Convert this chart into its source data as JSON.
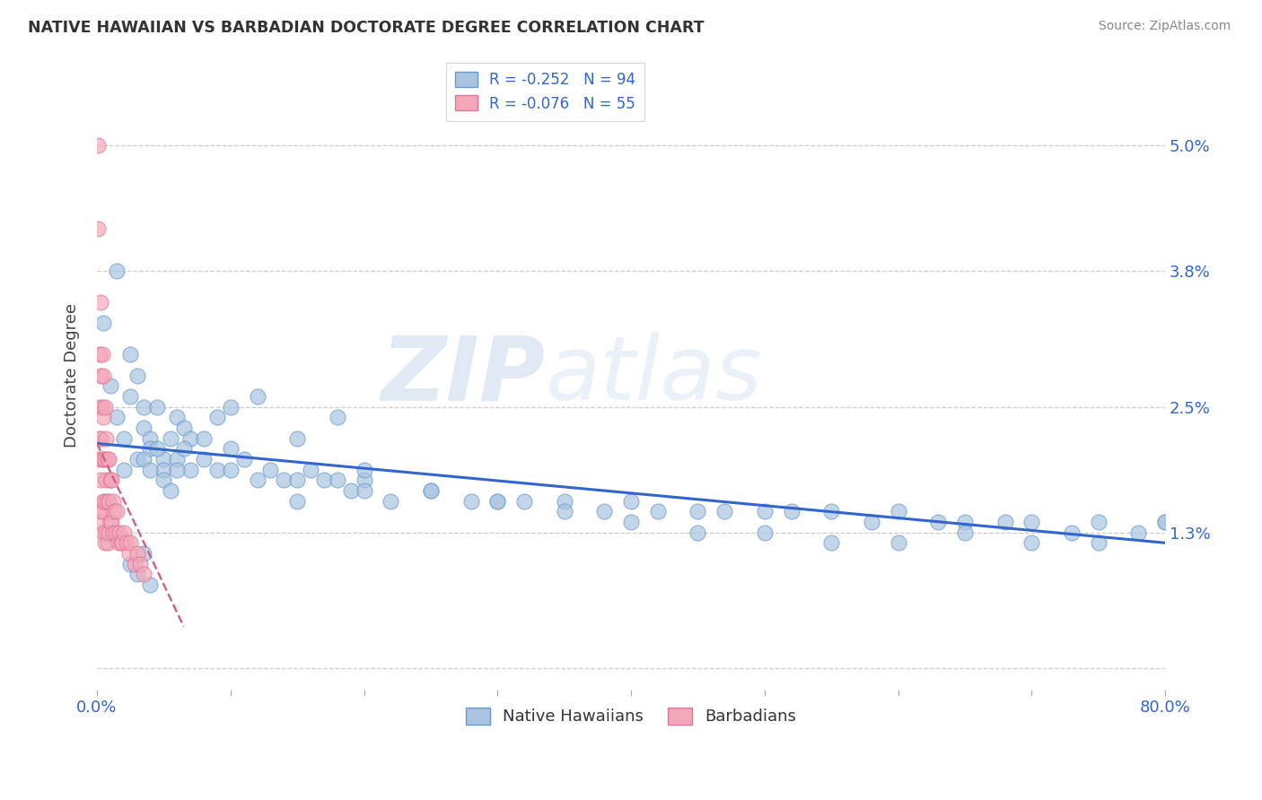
{
  "title": "NATIVE HAWAIIAN VS BARBADIAN DOCTORATE DEGREE CORRELATION CHART",
  "source": "Source: ZipAtlas.com",
  "ylabel": "Doctorate Degree",
  "xlim": [
    0.0,
    0.8
  ],
  "ylim": [
    -0.002,
    0.058
  ],
  "xtick_vals": [
    0.0,
    0.1,
    0.2,
    0.3,
    0.4,
    0.5,
    0.6,
    0.7,
    0.8
  ],
  "xtick_labels": [
    "0.0%",
    "",
    "",
    "",
    "",
    "",
    "",
    "",
    "80.0%"
  ],
  "ytick_vals": [
    0.0,
    0.013,
    0.025,
    0.038,
    0.05
  ],
  "ytick_labels": [
    "",
    "1.3%",
    "2.5%",
    "3.8%",
    "5.0%"
  ],
  "grid_color": "#cccccc",
  "background_color": "#ffffff",
  "series1_color": "#aac4e0",
  "series2_color": "#f4a7b9",
  "series1_edge": "#6699cc",
  "series2_edge": "#dd7799",
  "trendline1_color": "#3366cc",
  "trendline2_color": "#cc6688",
  "legend_series1_label": "R = -0.252   N = 94",
  "legend_series2_label": "R = -0.076   N = 55",
  "legend_label1": "Native Hawaiians",
  "legend_label2": "Barbadians",
  "native_hawaiian_x": [
    0.005,
    0.015,
    0.025,
    0.035,
    0.01,
    0.015,
    0.02,
    0.025,
    0.03,
    0.035,
    0.04,
    0.045,
    0.05,
    0.055,
    0.06,
    0.065,
    0.07,
    0.08,
    0.09,
    0.1,
    0.01,
    0.02,
    0.03,
    0.04,
    0.05,
    0.06,
    0.07,
    0.08,
    0.09,
    0.1,
    0.11,
    0.12,
    0.13,
    0.14,
    0.15,
    0.16,
    0.17,
    0.18,
    0.19,
    0.2,
    0.15,
    0.2,
    0.22,
    0.25,
    0.28,
    0.3,
    0.32,
    0.35,
    0.38,
    0.4,
    0.42,
    0.45,
    0.47,
    0.5,
    0.52,
    0.55,
    0.58,
    0.6,
    0.63,
    0.65,
    0.68,
    0.7,
    0.73,
    0.75,
    0.78,
    0.8,
    0.035,
    0.04,
    0.045,
    0.05,
    0.055,
    0.06,
    0.065,
    0.1,
    0.12,
    0.15,
    0.18,
    0.2,
    0.25,
    0.3,
    0.35,
    0.4,
    0.45,
    0.5,
    0.55,
    0.6,
    0.65,
    0.7,
    0.75,
    0.8,
    0.025,
    0.03,
    0.035,
    0.04
  ],
  "native_hawaiian_y": [
    0.033,
    0.038,
    0.03,
    0.025,
    0.027,
    0.024,
    0.022,
    0.026,
    0.028,
    0.023,
    0.022,
    0.025,
    0.02,
    0.022,
    0.024,
    0.023,
    0.022,
    0.022,
    0.024,
    0.021,
    0.018,
    0.019,
    0.02,
    0.021,
    0.019,
    0.02,
    0.019,
    0.02,
    0.019,
    0.019,
    0.02,
    0.018,
    0.019,
    0.018,
    0.018,
    0.019,
    0.018,
    0.018,
    0.017,
    0.018,
    0.016,
    0.017,
    0.016,
    0.017,
    0.016,
    0.016,
    0.016,
    0.016,
    0.015,
    0.016,
    0.015,
    0.015,
    0.015,
    0.015,
    0.015,
    0.015,
    0.014,
    0.015,
    0.014,
    0.014,
    0.014,
    0.014,
    0.013,
    0.014,
    0.013,
    0.014,
    0.02,
    0.019,
    0.021,
    0.018,
    0.017,
    0.019,
    0.021,
    0.025,
    0.026,
    0.022,
    0.024,
    0.019,
    0.017,
    0.016,
    0.015,
    0.014,
    0.013,
    0.013,
    0.012,
    0.012,
    0.013,
    0.012,
    0.012,
    0.014,
    0.01,
    0.009,
    0.011,
    0.008
  ],
  "barbadian_x": [
    0.001,
    0.001,
    0.001,
    0.002,
    0.002,
    0.002,
    0.002,
    0.003,
    0.003,
    0.003,
    0.003,
    0.003,
    0.004,
    0.004,
    0.004,
    0.004,
    0.005,
    0.005,
    0.005,
    0.005,
    0.005,
    0.006,
    0.006,
    0.006,
    0.006,
    0.007,
    0.007,
    0.007,
    0.008,
    0.008,
    0.008,
    0.009,
    0.009,
    0.009,
    0.01,
    0.01,
    0.011,
    0.011,
    0.012,
    0.012,
    0.013,
    0.014,
    0.015,
    0.016,
    0.017,
    0.018,
    0.019,
    0.02,
    0.022,
    0.024,
    0.025,
    0.028,
    0.03,
    0.032,
    0.035
  ],
  "barbadian_y": [
    0.05,
    0.042,
    0.02,
    0.03,
    0.025,
    0.022,
    0.015,
    0.035,
    0.028,
    0.022,
    0.018,
    0.014,
    0.03,
    0.025,
    0.02,
    0.015,
    0.028,
    0.024,
    0.02,
    0.016,
    0.013,
    0.025,
    0.02,
    0.016,
    0.012,
    0.022,
    0.018,
    0.013,
    0.02,
    0.016,
    0.012,
    0.02,
    0.016,
    0.013,
    0.018,
    0.014,
    0.018,
    0.014,
    0.016,
    0.013,
    0.015,
    0.013,
    0.015,
    0.012,
    0.013,
    0.012,
    0.012,
    0.013,
    0.012,
    0.011,
    0.012,
    0.01,
    0.011,
    0.01,
    0.009
  ],
  "trendline1_x": [
    0.0,
    0.8
  ],
  "trendline1_y": [
    0.0215,
    0.012
  ],
  "trendline2_x": [
    0.0,
    0.065
  ],
  "trendline2_y": [
    0.0215,
    0.004
  ]
}
